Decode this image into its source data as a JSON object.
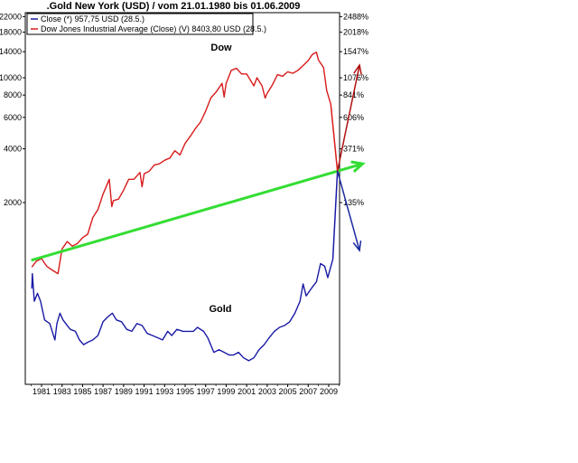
{
  "chart_data": {
    "type": "line",
    "title": ".Gold New York (USD) / vom 21.01.1980 bis 01.06.2009",
    "scale": "log",
    "grid": false,
    "legend_position": "top-left",
    "x_ticks": [
      "1981",
      "1983",
      "1985",
      "1987",
      "1989",
      "1991",
      "1993",
      "1995",
      "1997",
      "1999",
      "2001",
      "2003",
      "2005",
      "2007",
      "2009"
    ],
    "y_ticks_left": [
      "22000",
      "18000",
      "14000",
      "10000",
      "8000",
      "6000",
      "4000",
      "2000"
    ],
    "y_ticks_right": [
      "2488%",
      "2018%",
      "1547%",
      "1076%",
      "841%",
      "606%",
      "371%",
      "135%"
    ],
    "legend": [
      {
        "label": "Close (*) 957,75 USD (28.5.)",
        "color": "#1a1aa6"
      },
      {
        "label": "Dow Jones Industrial Average (Close) (V) 8403,80 USD (28.5.)",
        "color": "#d81b1b"
      }
    ],
    "annotations": {
      "dow": "Dow",
      "gold": "Gold"
    },
    "series": [
      {
        "name": "Dow Jones Industrial Average (Close)",
        "color": "#d81b1b",
        "x": [
          1980.05,
          1980.5,
          1981,
          1981.5,
          1982,
          1982.6,
          1983,
          1983.5,
          1984,
          1984.5,
          1985,
          1985.5,
          1986,
          1986.5,
          1987,
          1987.6,
          1987.85,
          1988,
          1988.5,
          1989,
          1989.5,
          1990,
          1990.6,
          1990.8,
          1991,
          1991.5,
          1992,
          1992.5,
          1993,
          1993.5,
          1994,
          1994.5,
          1995,
          1995.5,
          1996,
          1996.5,
          1997,
          1997.5,
          1998,
          1998.6,
          1998.8,
          1999,
          1999.5,
          2000,
          2000.5,
          2001,
          2001.7,
          2002,
          2002.5,
          2002.8,
          2003,
          2003.5,
          2004,
          2004.5,
          2005,
          2005.5,
          2006,
          2006.5,
          2007,
          2007.4,
          2007.8,
          2008,
          2008.5,
          2008.8,
          2009.2
        ],
        "y": [
          870,
          940,
          970,
          880,
          840,
          800,
          1100,
          1210,
          1140,
          1180,
          1270,
          1330,
          1650,
          1830,
          2230,
          2700,
          1900,
          2050,
          2090,
          2350,
          2700,
          2700,
          2950,
          2450,
          2900,
          3000,
          3250,
          3300,
          3450,
          3550,
          3900,
          3700,
          4300,
          4700,
          5200,
          5650,
          6500,
          7700,
          8300,
          9300,
          7800,
          9300,
          11000,
          11300,
          10500,
          10500,
          9000,
          10000,
          9000,
          7700,
          8200,
          9100,
          10400,
          10200,
          10800,
          10600,
          11000,
          11700,
          12500,
          13500,
          13900,
          12600,
          11400,
          8500,
          7100
        ]
      },
      {
        "name": "Close",
        "color": "#1a1aa6",
        "x": [
          1980.05,
          1980.1,
          1980.3,
          1980.6,
          1980.9,
          1981.3,
          1981.8,
          1982.3,
          1982.5,
          1982.8,
          1983.1,
          1983.5,
          1983.8,
          1984.3,
          1984.7,
          1985.1,
          1985.5,
          1986,
          1986.5,
          1987,
          1987.5,
          1987.9,
          1988.3,
          1988.8,
          1989.3,
          1989.8,
          1990.3,
          1990.8,
          1991.3,
          1991.8,
          1992.3,
          1992.8,
          1993.3,
          1993.7,
          1994.2,
          1994.8,
          1995.3,
          1995.8,
          1996.2,
          1996.8,
          1997.2,
          1997.8,
          1998.3,
          1998.8,
          1999.3,
          1999.7,
          2000.2,
          2000.7,
          2001.2,
          2001.7,
          2002.2,
          2002.7,
          2003.2,
          2003.7,
          2004.2,
          2004.7,
          2005.2,
          2005.7,
          2006.2,
          2006.5,
          2006.8,
          2007.3,
          2007.8,
          2008.2,
          2008.6,
          2008.9,
          2009.4
        ],
        "y": [
          660,
          800,
          560,
          620,
          560,
          440,
          420,
          340,
          420,
          480,
          440,
          410,
          390,
          380,
          340,
          320,
          330,
          340,
          360,
          430,
          460,
          480,
          440,
          430,
          390,
          380,
          420,
          410,
          370,
          360,
          350,
          340,
          380,
          360,
          390,
          380,
          380,
          380,
          400,
          380,
          350,
          290,
          300,
          290,
          280,
          280,
          290,
          270,
          260,
          270,
          300,
          320,
          350,
          380,
          400,
          410,
          430,
          480,
          560,
          700,
          600,
          660,
          720,
          910,
          880,
          760,
          960
        ]
      }
    ],
    "projection": {
      "pivot": {
        "x": 2009.85,
        "y": 3000
      },
      "trend_start": {
        "x": 1980.0,
        "y": 950
      },
      "trend_end_year": 2012.3,
      "red_arrow_end_year": 2012.0,
      "blue_arrow_end_year": 2012.0
    }
  },
  "colors": {
    "dow": "#d81b1b",
    "gold": "#1a1aa6",
    "trend": "#33dd33",
    "up_arrow": "#b01010",
    "down_arrow": "#1a2aa0"
  }
}
